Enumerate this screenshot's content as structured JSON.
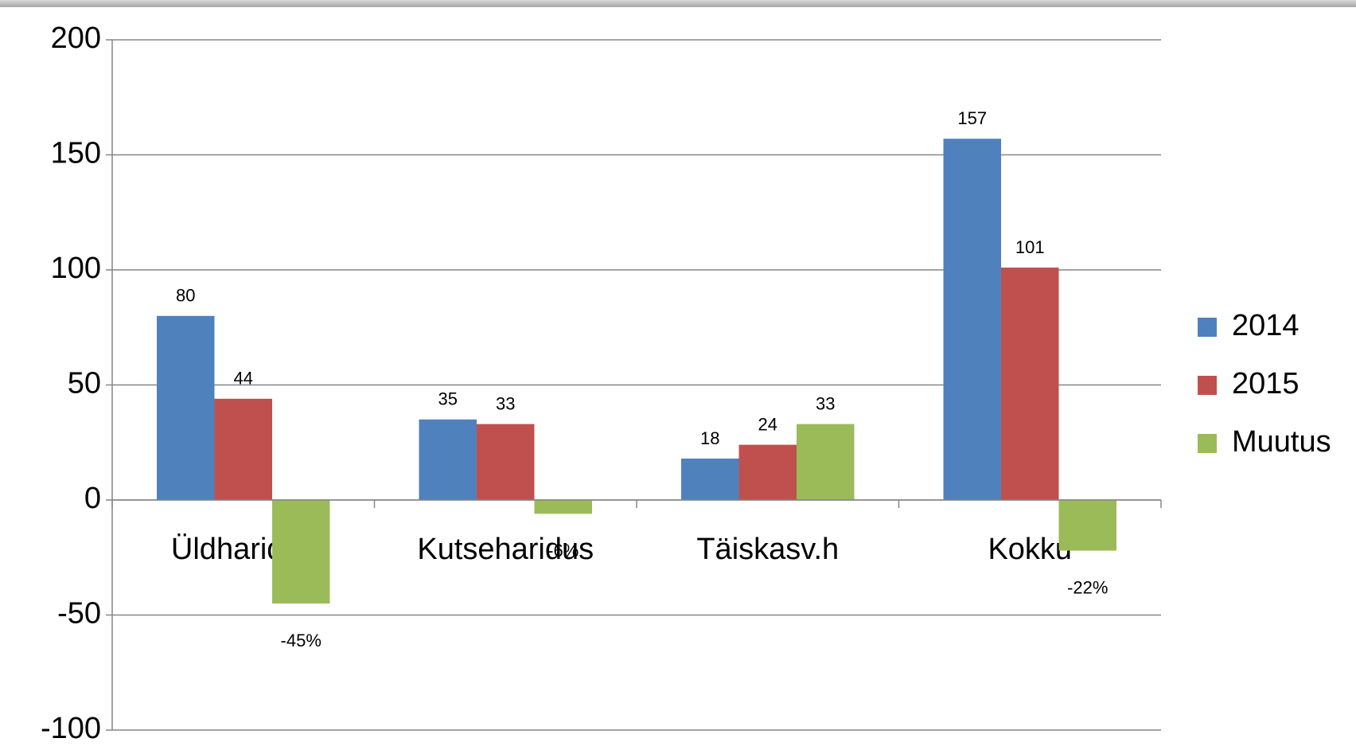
{
  "chart_data": {
    "type": "bar",
    "categories": [
      "Üldharidus",
      "Kutseharidus",
      "Täiskasv.h",
      "Kokku"
    ],
    "series": [
      {
        "name": "2014",
        "color": "#4f81bd",
        "values": [
          80,
          35,
          18,
          157
        ]
      },
      {
        "name": "2015",
        "color": "#c0504d",
        "values": [
          44,
          33,
          24,
          101
        ]
      },
      {
        "name": "Muutus",
        "color": "#9bbb59",
        "values": [
          -45,
          -6,
          33,
          -22
        ],
        "value_labels": [
          "-45%",
          "-6%",
          "33",
          "-22%"
        ]
      }
    ],
    "ylim": [
      -100,
      200
    ],
    "yticks": [
      -100,
      -50,
      0,
      50,
      100,
      150,
      200
    ],
    "grid": true,
    "legend": "right"
  }
}
